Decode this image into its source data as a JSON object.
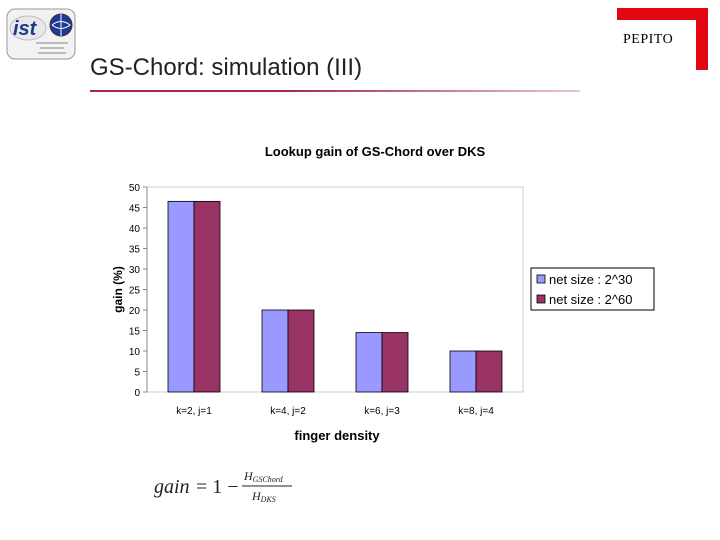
{
  "header": {
    "logo_text": "ist",
    "brand_label": "PEPITO",
    "brand_color": "#e30613",
    "slide_title": "GS-Chord: simulation (III)",
    "rule_color": "#a02850"
  },
  "formula": {
    "lhs": "gain",
    "equals_one_minus": "= 1 −",
    "numerator": "H",
    "numerator_sub": "GSChord",
    "denominator": "H",
    "denominator_sub": "DKS"
  },
  "chart_data": {
    "type": "bar",
    "title": "Lookup gain of GS-Chord over DKS",
    "xlabel": "finger density",
    "ylabel": "gain (%)",
    "categories": [
      "k=2, j=1",
      "k=4, j=2",
      "k=6, j=3",
      "k=8, j=4"
    ],
    "series": [
      {
        "name": "net size : 2^30",
        "values": [
          46.5,
          20,
          14.5,
          10
        ],
        "color": "#9999ff"
      },
      {
        "name": "net size :  2^60",
        "values": [
          46.5,
          20,
          14.5,
          10
        ],
        "color": "#993366"
      }
    ],
    "ylim": [
      0,
      50
    ],
    "yticks": [
      0,
      5,
      10,
      15,
      20,
      25,
      30,
      35,
      40,
      45,
      50
    ],
    "legend_position": "right",
    "grid": false
  }
}
